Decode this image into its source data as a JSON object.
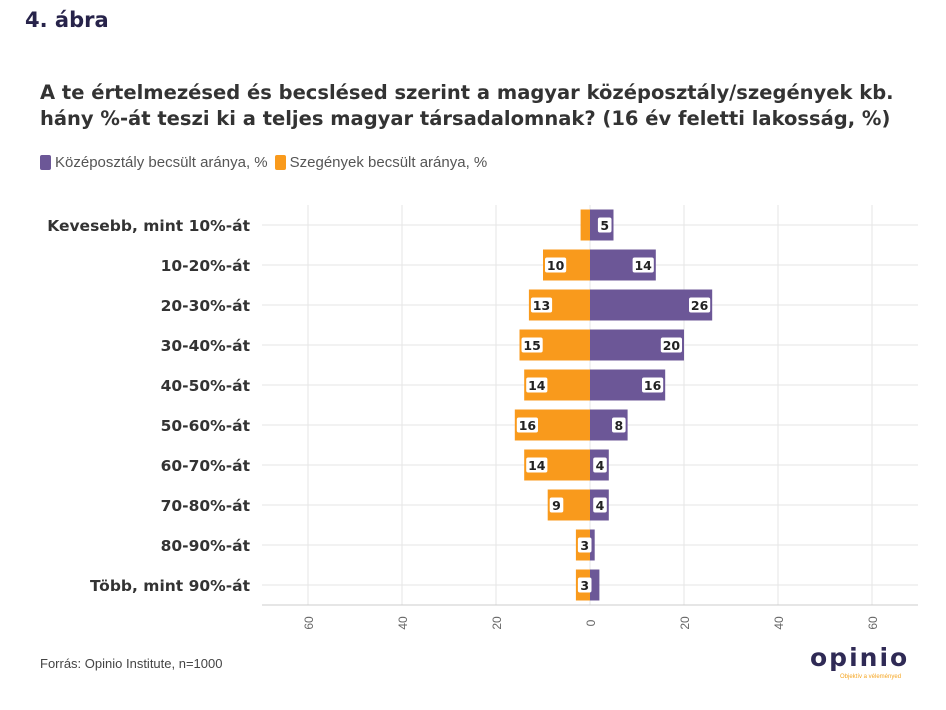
{
  "figure_label": "4. ábra",
  "source": "Forrás: Opinio Institute, n=1000",
  "logo": {
    "word": "opinio",
    "tagline": "Objektív a véleményed"
  },
  "colors": {
    "middle_class": "#6c5797",
    "poor": "#f99a1c",
    "grid": "#e6e6e6",
    "axis_text": "#666666"
  },
  "chart_data": {
    "type": "bar",
    "orientation": "horizontal-diverging",
    "title": "A te értelmezésed és becslésed szerint a magyar középosztály/szegények kb. hány %-át teszi ki a teljes magyar társadalomnak? (16 év feletti lakosság, %)",
    "categories": [
      "Kevesebb, mint 10%-át",
      "10-20%-át",
      "20-30%-át",
      "30-40%-át",
      "40-50%-át",
      "50-60%-át",
      "60-70%-át",
      "70-80%-át",
      "80-90%-át",
      "Több, mint 90%-át"
    ],
    "series": [
      {
        "name": "Középosztály becsült aránya, %",
        "side": "right",
        "values": [
          5,
          14,
          26,
          20,
          16,
          8,
          4,
          4,
          1,
          2
        ]
      },
      {
        "name": "Szegények becsült aránya, %",
        "side": "left",
        "values": [
          2,
          10,
          13,
          15,
          14,
          16,
          14,
          9,
          3,
          3
        ]
      }
    ],
    "data_labels": {
      "middle_class": [
        "5",
        "14",
        "26",
        "20",
        "16",
        "8",
        "4",
        "4",
        "",
        ""
      ],
      "poor": [
        "",
        "10",
        "13",
        "15",
        "14",
        "16",
        "14",
        "9",
        "3",
        "3"
      ]
    },
    "x_ticks": [
      60,
      40,
      20,
      0,
      20,
      40,
      60
    ],
    "xlim": [
      -70,
      70
    ],
    "legend": "top-left",
    "grid": true
  }
}
